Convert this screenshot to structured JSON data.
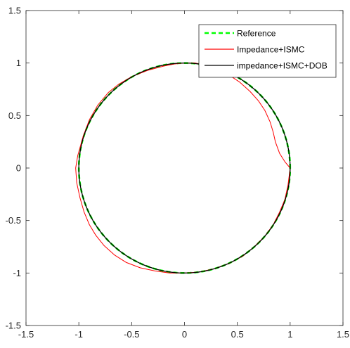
{
  "chart_data": {
    "type": "line",
    "title": "",
    "xlabel": "",
    "ylabel": "",
    "xlim": [
      -1.5,
      1.5
    ],
    "ylim": [
      -1.5,
      1.5
    ],
    "grid": false,
    "legend_position": "top-right",
    "x_ticks": [
      "-1.5",
      "-1",
      "-0.5",
      "0",
      "0.5",
      "1",
      "1.5"
    ],
    "y_ticks": [
      "-1.5",
      "-1",
      "-0.5",
      "0",
      "0.5",
      "1",
      "1.5"
    ],
    "series": [
      {
        "name": "Reference",
        "color": "#00ff00",
        "style": "dashed",
        "parametric": "circle",
        "radius": 1.0,
        "center": [
          0,
          0
        ]
      },
      {
        "name": "Impedance+ISMC",
        "color": "#ff0000",
        "style": "solid",
        "x": [
          1.0,
          0.95,
          0.9,
          0.86,
          0.84,
          0.81,
          0.76,
          0.7,
          0.62,
          0.52,
          0.4,
          0.3,
          0.2,
          0.1,
          0.0,
          -0.1,
          -0.2,
          -0.35,
          -0.5,
          -0.62,
          -0.72,
          -0.82,
          -0.9,
          -0.96,
          -1.01,
          -1.03,
          -1.02,
          -0.99,
          -0.95,
          -0.9,
          -0.84,
          -0.76,
          -0.66,
          -0.55,
          -0.42,
          -0.28,
          -0.14,
          0.0,
          0.14,
          0.28,
          0.42,
          0.55,
          0.66,
          0.76,
          0.84,
          0.9,
          0.95,
          0.98,
          1.0
        ],
        "y": [
          0.0,
          0.06,
          0.14,
          0.25,
          0.34,
          0.44,
          0.55,
          0.64,
          0.73,
          0.82,
          0.9,
          0.95,
          0.98,
          1.0,
          1.0,
          0.99,
          0.97,
          0.93,
          0.87,
          0.8,
          0.72,
          0.6,
          0.46,
          0.3,
          0.12,
          0.0,
          -0.14,
          -0.28,
          -0.42,
          -0.54,
          -0.64,
          -0.74,
          -0.83,
          -0.9,
          -0.95,
          -0.98,
          -1.0,
          -1.0,
          -0.99,
          -0.96,
          -0.91,
          -0.84,
          -0.75,
          -0.65,
          -0.54,
          -0.42,
          -0.3,
          -0.16,
          0.0
        ]
      },
      {
        "name": "impedance+ISMC+DOB",
        "color": "#000000",
        "style": "solid",
        "parametric": "circle",
        "radius": 1.0,
        "center": [
          0,
          0
        ]
      }
    ]
  }
}
